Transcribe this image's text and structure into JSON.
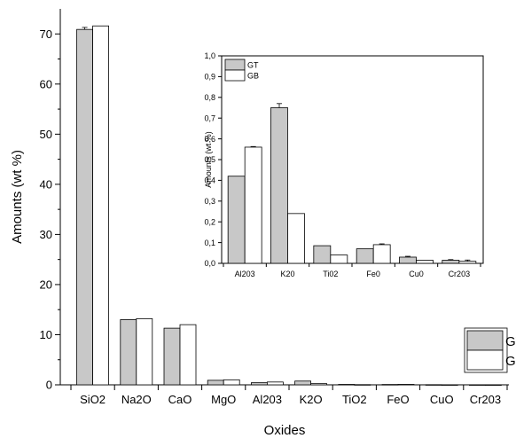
{
  "chart_data": [
    {
      "type": "bar",
      "xlabel": "Oxides",
      "ylabel": "Amounts (wt %)",
      "categories": [
        "SiO2",
        "Na2O",
        "CaO",
        "MgO",
        "Al203",
        "K2O",
        "TiO2",
        "FeO",
        "CuO",
        "Cr203"
      ],
      "ylim": [
        0,
        75
      ],
      "yticks": [
        "0",
        "10",
        "20",
        "30",
        "40",
        "50",
        "60",
        "70"
      ],
      "series": [
        {
          "name": "GT",
          "color": "#c8c8c8",
          "values": [
            70.9,
            13.0,
            11.3,
            0.9,
            0.42,
            0.75,
            0.085,
            0.07,
            0.03,
            0.015
          ],
          "errors": [
            0.4,
            0,
            0,
            0,
            0,
            0,
            0,
            0,
            0,
            0
          ]
        },
        {
          "name": "GB",
          "color": "#ffffff",
          "values": [
            71.6,
            13.2,
            12.0,
            1.0,
            0.56,
            0.24,
            0.04,
            0.09,
            0.015,
            0.01
          ],
          "errors": [
            0,
            0,
            0,
            0,
            0,
            0,
            0,
            0,
            0,
            0
          ]
        }
      ],
      "legend": {
        "position": "bottom-right"
      }
    },
    {
      "type": "bar",
      "xlabel": "",
      "ylabel": "Amounts (wt %)",
      "categories": [
        "Al203",
        "K20",
        "Ti02",
        "Fe0",
        "Cu0",
        "Cr203"
      ],
      "ylim": [
        0,
        1.0
      ],
      "yticks": [
        "0,0",
        "0,1",
        "0,2",
        "0,3",
        "0,4",
        "0,5",
        "0,6",
        "0,7",
        "0,8",
        "0,9",
        "1,0"
      ],
      "series": [
        {
          "name": "GT",
          "color": "#c8c8c8",
          "values": [
            0.42,
            0.75,
            0.085,
            0.07,
            0.03,
            0.015
          ],
          "errors": [
            0,
            0.02,
            0,
            0,
            0.004,
            0.003
          ]
        },
        {
          "name": "GB",
          "color": "#ffffff",
          "values": [
            0.56,
            0.24,
            0.04,
            0.09,
            0.015,
            0.01
          ],
          "errors": [
            0.003,
            0,
            0,
            0.004,
            0,
            0.006
          ]
        }
      ],
      "legend": {
        "position": "top-left"
      }
    }
  ]
}
